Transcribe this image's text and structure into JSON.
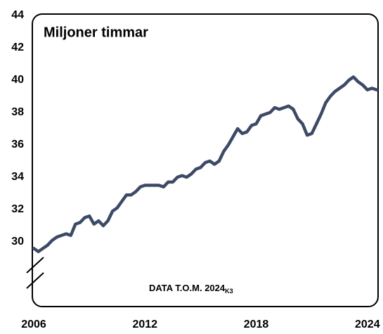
{
  "chart_data": {
    "type": "line",
    "title": "Miljoner timmar",
    "annotation": "DATA T.O.M. 2024",
    "annotation_subscript": "K3",
    "categories": [
      "2006",
      null,
      null,
      null,
      null,
      null,
      null,
      null,
      null,
      null,
      null,
      null,
      null,
      null,
      null,
      null,
      null,
      null,
      null,
      null,
      null,
      null,
      null,
      null,
      "2012",
      null,
      null,
      null,
      null,
      null,
      null,
      null,
      null,
      null,
      null,
      null,
      null,
      null,
      null,
      null,
      null,
      null,
      null,
      null,
      null,
      null,
      null,
      null,
      "2018",
      null,
      null,
      null,
      null,
      null,
      null,
      null,
      null,
      null,
      null,
      null,
      null,
      null,
      null,
      null,
      null,
      null,
      null,
      null,
      null,
      null,
      null,
      null,
      "2024",
      null,
      null
    ],
    "values": [
      29.6,
      29.4,
      29.6,
      29.8,
      30.1,
      30.3,
      30.4,
      30.5,
      30.4,
      31.1,
      31.2,
      31.5,
      31.6,
      31.1,
      31.3,
      31.0,
      31.3,
      31.9,
      32.1,
      32.5,
      32.9,
      32.9,
      33.1,
      33.4,
      33.5,
      33.5,
      33.5,
      33.5,
      33.4,
      33.7,
      33.7,
      34.0,
      34.1,
      34.0,
      34.2,
      34.5,
      34.6,
      34.9,
      35.0,
      34.8,
      35.0,
      35.6,
      36.0,
      36.5,
      37.0,
      36.7,
      36.8,
      37.2,
      37.3,
      37.8,
      37.9,
      38.0,
      38.3,
      38.2,
      38.3,
      38.4,
      38.2,
      37.6,
      37.3,
      36.6,
      36.7,
      37.3,
      37.9,
      38.6,
      39.0,
      39.3,
      39.5,
      39.7,
      40.0,
      40.2,
      39.9,
      39.7,
      39.4,
      39.5,
      39.4
    ],
    "color": "#3d4a66",
    "ylim": [
      26,
      44
    ],
    "yticks": [
      30,
      32,
      34,
      36,
      38,
      40,
      42,
      44
    ],
    "grid": false
  }
}
